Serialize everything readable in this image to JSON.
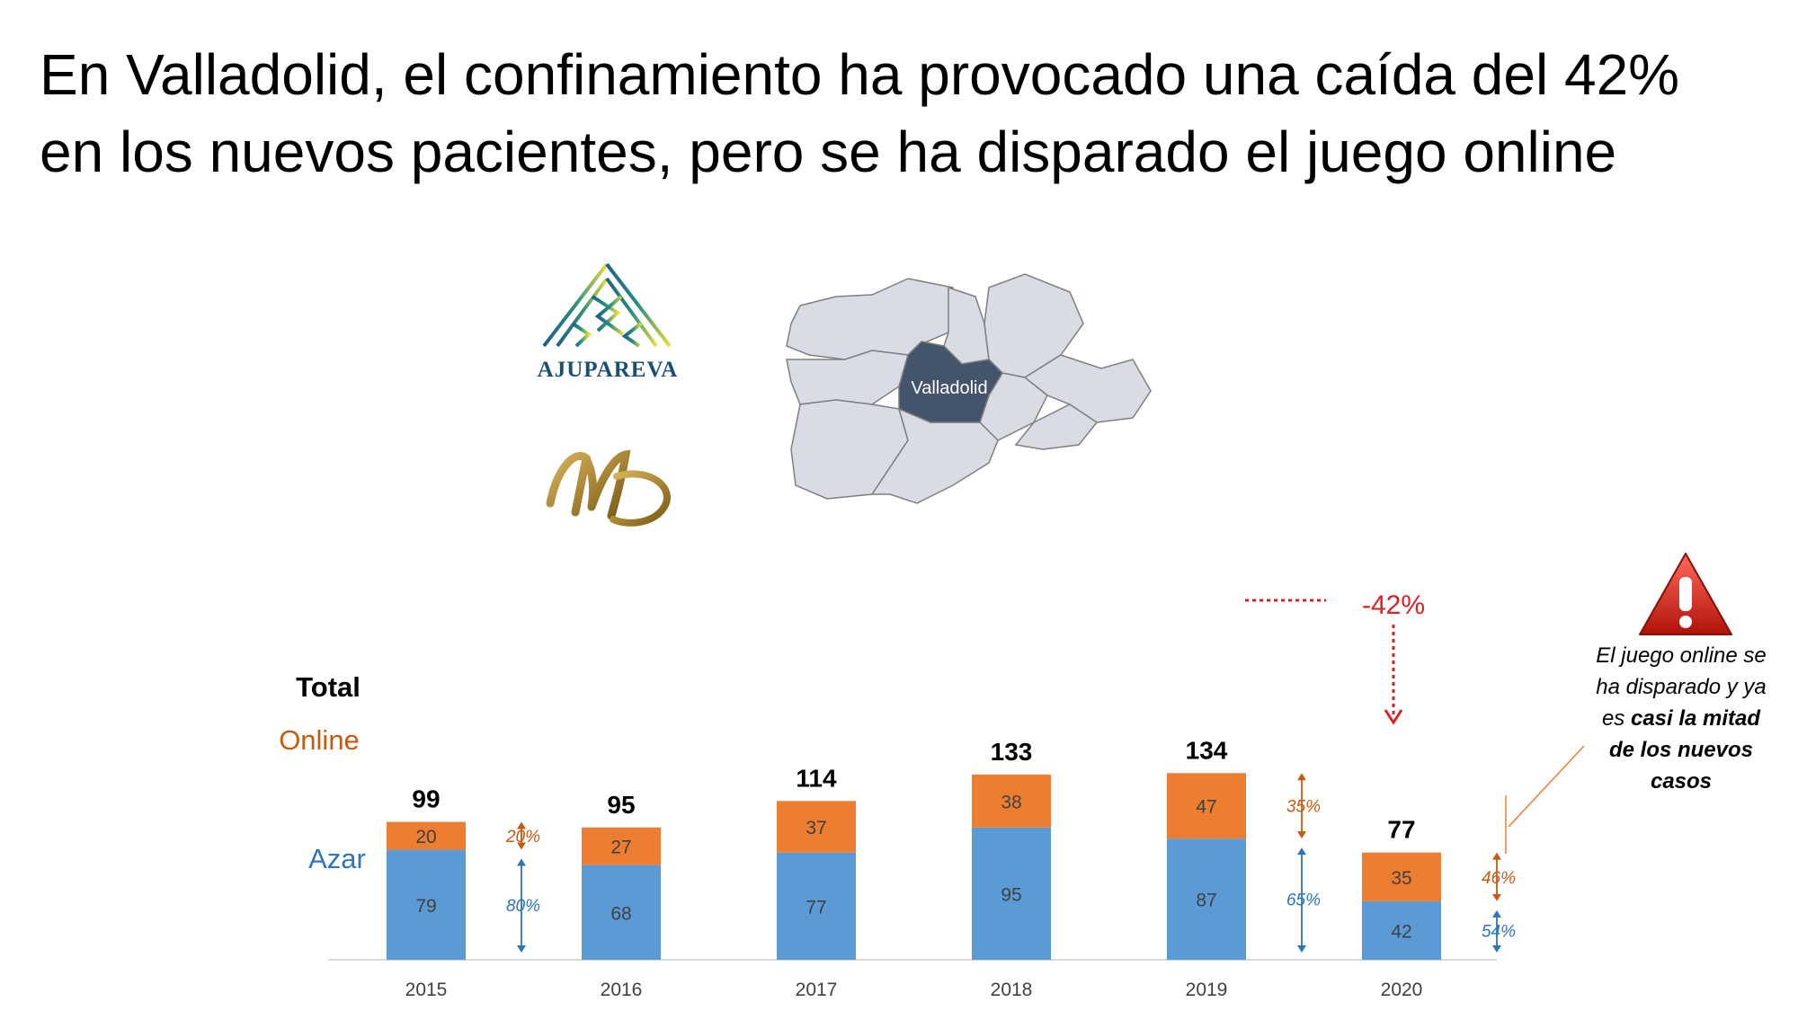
{
  "title": {
    "line1": "En Valladolid, el confinamiento ha provocado una caída del 42%",
    "line2": "en los nuevos pacientes, pero se ha disparado el juego online"
  },
  "logos": {
    "ajupareva": "AJUPAREVA",
    "md": "MD"
  },
  "map": {
    "highlight_label": "Valladolid",
    "highlight_color": "#44546a",
    "region_color": "#d9dce4"
  },
  "callout": {
    "text_before": "El juego online se ha disparado y ya es ",
    "text_bold": "casi la mitad de los nuevos casos",
    "icon": "warning-icon"
  },
  "colors": {
    "azar": "#5b9bd5",
    "online": "#ed7d31",
    "drop": "#e02020",
    "online_text": "#c55a11",
    "azar_text": "#2e75b6"
  },
  "chart_data": {
    "type": "bar",
    "stacked": true,
    "categories": [
      "2015",
      "2016",
      "2017",
      "2018",
      "2019",
      "2020"
    ],
    "series": [
      {
        "name": "Azar",
        "values": [
          79,
          68,
          77,
          95,
          87,
          42
        ]
      },
      {
        "name": "Online",
        "values": [
          20,
          27,
          37,
          38,
          47,
          35
        ]
      }
    ],
    "totals": [
      99,
      95,
      114,
      133,
      134,
      77
    ],
    "row_labels": {
      "total": "Total",
      "online": "Online",
      "azar": "Azar"
    },
    "share_annotations": [
      {
        "after": "2015",
        "online": "20%",
        "azar": "80%"
      },
      {
        "after": "2019",
        "online": "35%",
        "azar": "65%"
      },
      {
        "after": "2020",
        "online": "46%",
        "azar": "54%"
      }
    ],
    "drop_label": "-42%",
    "ylim": [
      0,
      140
    ],
    "grid": false
  }
}
